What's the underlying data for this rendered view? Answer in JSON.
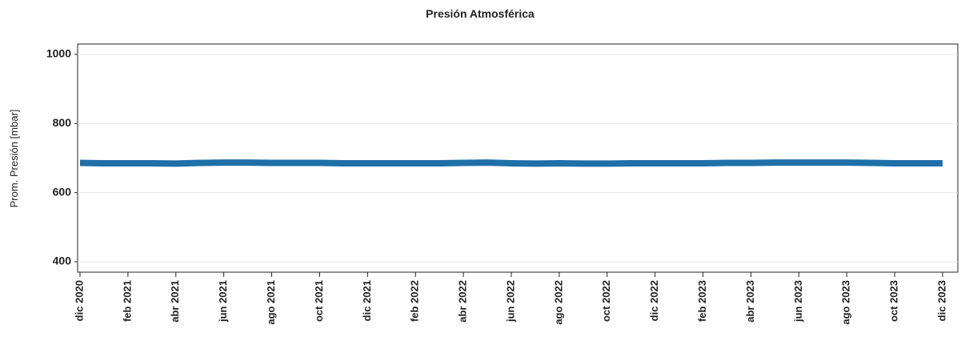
{
  "chart_data": {
    "type": "line",
    "title": "Presión Atmosférica",
    "y_label": "Prom. Presión [mbar]",
    "x": [
      "2020-12",
      "2021-01",
      "2021-02",
      "2021-03",
      "2021-04",
      "2021-05",
      "2021-06",
      "2021-07",
      "2021-08",
      "2021-09",
      "2021-10",
      "2021-11",
      "2021-12",
      "2022-01",
      "2022-02",
      "2022-03",
      "2022-04",
      "2022-05",
      "2022-06",
      "2022-07",
      "2022-08",
      "2022-09",
      "2022-10",
      "2022-11",
      "2022-12",
      "2023-01",
      "2023-02",
      "2023-03",
      "2023-04",
      "2023-05",
      "2023-06",
      "2023-07",
      "2023-08",
      "2023-09",
      "2023-10",
      "2023-11",
      "2023-12"
    ],
    "series": [
      {
        "name": "Prom. Presión",
        "color": "#1f6fa8",
        "values": [
          686,
          685,
          685,
          685,
          684,
          686,
          687,
          687,
          686,
          686,
          686,
          685,
          685,
          685,
          685,
          685,
          686,
          687,
          685,
          684,
          685,
          684,
          684,
          685,
          685,
          685,
          685,
          686,
          686,
          687,
          687,
          687,
          687,
          686,
          685,
          685,
          685
        ]
      }
    ],
    "xlim": [
      "2020-12",
      "2023-12"
    ],
    "xticks": [
      {
        "value": "2020-12",
        "label": "dic 2020"
      },
      {
        "value": "2021-02",
        "label": "feb 2021"
      },
      {
        "value": "2021-04",
        "label": "abr 2021"
      },
      {
        "value": "2021-06",
        "label": "jun 2021"
      },
      {
        "value": "2021-08",
        "label": "ago 2021"
      },
      {
        "value": "2021-10",
        "label": "oct 2021"
      },
      {
        "value": "2021-12",
        "label": "dic 2021"
      },
      {
        "value": "2022-02",
        "label": "feb 2022"
      },
      {
        "value": "2022-04",
        "label": "abr 2022"
      },
      {
        "value": "2022-06",
        "label": "jun 2022"
      },
      {
        "value": "2022-08",
        "label": "ago 2022"
      },
      {
        "value": "2022-10",
        "label": "oct 2022"
      },
      {
        "value": "2022-12",
        "label": "dic 2022"
      },
      {
        "value": "2023-02",
        "label": "feb 2023"
      },
      {
        "value": "2023-04",
        "label": "abr 2023"
      },
      {
        "value": "2023-06",
        "label": "jun 2023"
      },
      {
        "value": "2023-08",
        "label": "ago 2023"
      },
      {
        "value": "2023-10",
        "label": "oct 2023"
      },
      {
        "value": "2023-12",
        "label": "dic 2023"
      }
    ],
    "ylim": [
      370,
      1030
    ],
    "yticks": [
      400,
      600,
      800,
      1000
    ],
    "grid": true
  }
}
